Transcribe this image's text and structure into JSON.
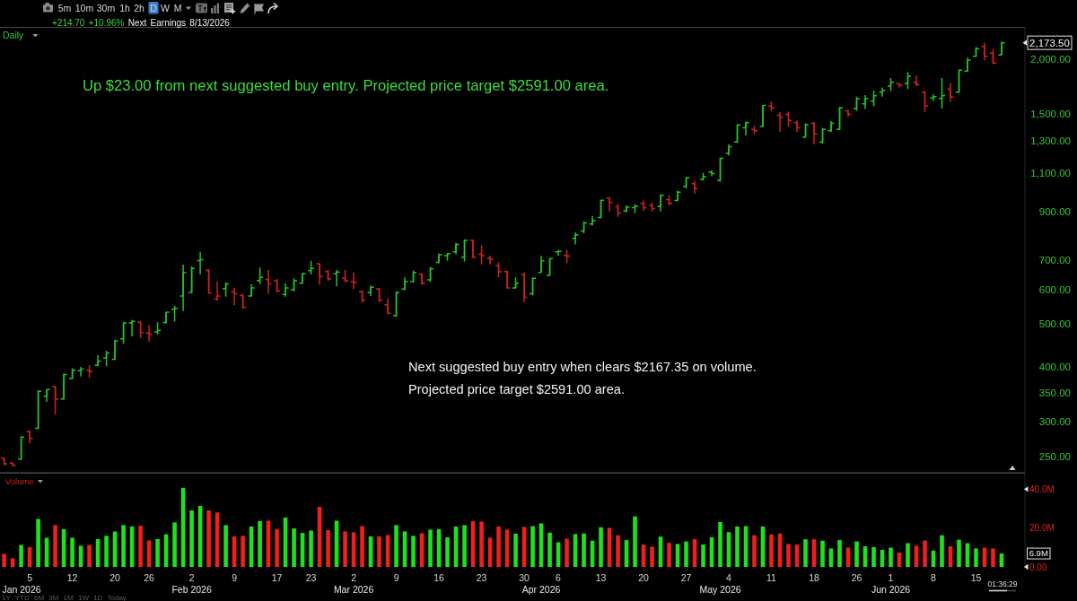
{
  "chart_data": [
    {
      "type": "candlestick",
      "title": "Daily",
      "subtitle": "+214.70 +10.96% Next Earnings 8/13/2026",
      "log": true,
      "tick_labels": "y",
      "categories": [
        null,
        null,
        null,
        null,
        null,
        null,
        null,
        null,
        null,
        null,
        null,
        null,
        null,
        null,
        null,
        null,
        null,
        null,
        null,
        null,
        null,
        null,
        null,
        null,
        null,
        null,
        null,
        null,
        null,
        null,
        null,
        null,
        null,
        null,
        null,
        null,
        null,
        null,
        null,
        null,
        null,
        null,
        null,
        null,
        null,
        null,
        null,
        null,
        null,
        null,
        null,
        null,
        null,
        null,
        null,
        null,
        null,
        null,
        null,
        null,
        null,
        null,
        null,
        null,
        null,
        null,
        null,
        null,
        null,
        null,
        null,
        null,
        null,
        null,
        null,
        null,
        null,
        null,
        null,
        null,
        null,
        null,
        null,
        null,
        null,
        null,
        null,
        null,
        null,
        null,
        null,
        null,
        null,
        null,
        null,
        null,
        null,
        null,
        null,
        null,
        null,
        null,
        null,
        null,
        null,
        null,
        null,
        null,
        null,
        null,
        null,
        null,
        null,
        null,
        null,
        null,
        null,
        null
      ],
      "ohlc": [
        [
          248,
          249,
          239,
          241
        ],
        [
          242,
          243,
          238,
          239
        ],
        [
          247,
          278,
          246,
          277
        ],
        [
          285,
          287,
          268,
          275
        ],
        [
          290,
          354,
          289,
          352
        ],
        [
          343,
          356,
          333,
          355
        ],
        [
          361,
          362,
          312,
          338
        ],
        [
          338,
          386,
          337,
          384
        ],
        [
          376,
          397,
          375,
          393
        ],
        [
          392,
          400,
          380,
          395
        ],
        [
          393,
          403,
          378,
          390
        ],
        [
          403,
          425,
          401,
          412
        ],
        [
          419,
          435,
          401,
          430
        ],
        [
          416,
          460,
          414,
          458
        ],
        [
          463,
          505,
          451,
          503
        ],
        [
          503,
          511,
          469,
          507
        ],
        [
          505,
          507,
          465,
          478
        ],
        [
          477,
          497,
          456,
          474
        ],
        [
          480,
          505,
          474,
          484
        ],
        [
          504,
          533,
          501,
          532
        ],
        [
          540,
          550,
          507,
          543
        ],
        [
          579,
          682,
          535,
          654
        ],
        [
          590,
          676,
          588,
          669
        ],
        [
          697,
          729,
          648,
          700
        ],
        [
          662,
          666,
          586,
          588
        ],
        [
          570,
          624,
          565,
          579
        ],
        [
          602,
          621,
          577,
          617
        ],
        [
          592,
          604,
          552,
          586
        ],
        [
          580,
          586,
          542,
          546
        ],
        [
          579,
          616,
          577,
          604
        ],
        [
          628,
          672,
          617,
          638
        ],
        [
          631,
          664,
          586,
          617
        ],
        [
          627,
          633,
          590,
          595
        ],
        [
          584,
          619,
          577,
          604
        ],
        [
          598,
          635,
          593,
          627
        ],
        [
          619,
          654,
          617,
          651
        ],
        [
          661,
          696,
          648,
          669
        ],
        [
          685,
          687,
          614,
          641
        ],
        [
          658,
          664,
          627,
          633
        ],
        [
          650,
          664,
          609,
          656
        ],
        [
          636,
          664,
          622,
          627
        ],
        [
          624,
          654,
          600,
          622
        ],
        [
          592,
          597,
          559,
          566
        ],
        [
          590,
          612,
          579,
          606
        ],
        [
          600,
          604,
          561,
          566
        ],
        [
          553,
          572,
          527,
          529
        ],
        [
          523,
          593,
          519,
          590
        ],
        [
          600,
          638,
          597,
          625
        ],
        [
          625,
          662,
          621,
          655
        ],
        [
          648,
          654,
          614,
          619
        ],
        [
          630,
          674,
          624,
          667
        ],
        [
          690,
          723,
          687,
          718
        ],
        [
          715,
          725,
          696,
          722
        ],
        [
          729,
          764,
          720,
          758
        ],
        [
          709,
          778,
          693,
          774
        ],
        [
          774,
          778,
          706,
          709
        ],
        [
          720,
          754,
          683,
          715
        ],
        [
          706,
          715,
          683,
          701
        ],
        [
          679,
          690,
          638,
          657
        ],
        [
          658,
          662,
          602,
          604
        ],
        [
          604,
          638,
          602,
          619
        ],
        [
          648,
          655,
          561,
          575
        ],
        [
          586,
          638,
          581,
          635
        ],
        [
          655,
          714,
          654,
          696
        ],
        [
          645,
          706,
          643,
          704
        ],
        [
          729,
          737,
          715,
          731
        ],
        [
          716,
          738,
          687,
          713
        ],
        [
          782,
          807,
          758,
          797
        ],
        [
          813,
          855,
          804,
          848
        ],
        [
          843,
          879,
          836,
          859
        ],
        [
          872,
          958,
          868,
          955
        ],
        [
          965,
          970,
          900,
          943
        ],
        [
          924,
          936,
          875,
          893
        ],
        [
          903,
          929,
          896,
          921
        ],
        [
          918,
          936,
          893,
          926
        ],
        [
          939,
          953,
          904,
          917
        ],
        [
          929,
          943,
          900,
          914
        ],
        [
          924,
          984,
          900,
          980
        ],
        [
          958,
          980,
          929,
          939
        ],
        [
          953,
          1004,
          951,
          996
        ],
        [
          1025,
          1077,
          1015,
          1074
        ],
        [
          1041,
          1057,
          988,
          1015
        ],
        [
          1064,
          1102,
          1060,
          1080
        ],
        [
          1107,
          1115,
          1082,
          1097
        ],
        [
          1060,
          1192,
          1052,
          1188
        ],
        [
          1220,
          1279,
          1205,
          1263
        ],
        [
          1295,
          1419,
          1289,
          1415
        ],
        [
          1393,
          1442,
          1340,
          1431
        ],
        [
          1383,
          1409,
          1351,
          1372
        ],
        [
          1404,
          1571,
          1398,
          1566
        ],
        [
          1562,
          1596,
          1519,
          1547
        ],
        [
          1488,
          1514,
          1365,
          1472
        ],
        [
          1495,
          1519,
          1404,
          1449
        ],
        [
          1431,
          1449,
          1365,
          1393
        ],
        [
          1327,
          1426,
          1323,
          1415
        ],
        [
          1426,
          1438,
          1279,
          1351
        ],
        [
          1293,
          1393,
          1283,
          1383
        ],
        [
          1372,
          1444,
          1365,
          1426
        ],
        [
          1383,
          1555,
          1378,
          1547
        ],
        [
          1523,
          1530,
          1476,
          1495
        ],
        [
          1542,
          1641,
          1523,
          1621
        ],
        [
          1580,
          1654,
          1537,
          1625
        ],
        [
          1603,
          1694,
          1559,
          1647
        ],
        [
          1680,
          1720,
          1641,
          1694
        ],
        [
          1734,
          1808,
          1688,
          1767
        ],
        [
          1755,
          1761,
          1720,
          1742
        ],
        [
          1755,
          1866,
          1707,
          1825
        ],
        [
          1767,
          1832,
          1734,
          1748
        ],
        [
          1680,
          1688,
          1514,
          1562
        ],
        [
          1629,
          1662,
          1603,
          1641
        ],
        [
          1625,
          1808,
          1542,
          1650
        ],
        [
          1707,
          1761,
          1596,
          1637
        ],
        [
          1680,
          1889,
          1672,
          1884
        ],
        [
          1875,
          2011,
          1866,
          1986
        ],
        [
          2026,
          2124,
          2017,
          2108
        ],
        [
          2133,
          2174,
          1986,
          2026
        ],
        [
          2059,
          2101,
          1943,
          1956
        ],
        [
          2040,
          2185,
          2036,
          2173.5
        ]
      ],
      "colors": [
        "#cc2222",
        "#cc2222",
        "#2bbf2b",
        "#cc2222",
        "#2bbf2b",
        "#2bbf2b",
        "#cc2222",
        "#2bbf2b",
        "#2bbf2b",
        "#2bbf2b",
        "#cc2222",
        "#2bbf2b",
        "#2bbf2b",
        "#2bbf2b",
        "#2bbf2b",
        "#2bbf2b",
        "#cc2222",
        "#cc2222",
        "#2bbf2b",
        "#2bbf2b",
        "#2bbf2b",
        "#2bbf2b",
        "#2bbf2b",
        "#2bbf2b",
        "#cc2222",
        "#cc2222",
        "#2bbf2b",
        "#cc2222",
        "#cc2222",
        "#2bbf2b",
        "#2bbf2b",
        "#cc2222",
        "#cc2222",
        "#2bbf2b",
        "#2bbf2b",
        "#2bbf2b",
        "#2bbf2b",
        "#cc2222",
        "#cc2222",
        "#2bbf2b",
        "#cc2222",
        "#cc2222",
        "#cc2222",
        "#2bbf2b",
        "#cc2222",
        "#cc2222",
        "#2bbf2b",
        "#2bbf2b",
        "#2bbf2b",
        "#cc2222",
        "#2bbf2b",
        "#2bbf2b",
        "#2bbf2b",
        "#2bbf2b",
        "#2bbf2b",
        "#cc2222",
        "#cc2222",
        "#cc2222",
        "#cc2222",
        "#cc2222",
        "#2bbf2b",
        "#cc2222",
        "#2bbf2b",
        "#2bbf2b",
        "#2bbf2b",
        "#2bbf2b",
        "#cc2222",
        "#2bbf2b",
        "#2bbf2b",
        "#2bbf2b",
        "#2bbf2b",
        "#cc2222",
        "#cc2222",
        "#2bbf2b",
        "#2bbf2b",
        "#cc2222",
        "#cc2222",
        "#2bbf2b",
        "#cc2222",
        "#2bbf2b",
        "#2bbf2b",
        "#cc2222",
        "#2bbf2b",
        "#2bbf2b",
        "#2bbf2b",
        "#2bbf2b",
        "#2bbf2b",
        "#2bbf2b",
        "#cc2222",
        "#2bbf2b",
        "#cc2222",
        "#cc2222",
        "#cc2222",
        "#cc2222",
        "#2bbf2b",
        "#cc2222",
        "#2bbf2b",
        "#2bbf2b",
        "#2bbf2b",
        "#cc2222",
        "#2bbf2b",
        "#2bbf2b",
        "#2bbf2b",
        "#2bbf2b",
        "#2bbf2b",
        "#cc2222",
        "#2bbf2b",
        "#cc2222",
        "#cc2222",
        "#2bbf2b",
        "#2bbf2b",
        "#cc2222",
        "#2bbf2b",
        "#2bbf2b",
        "#2bbf2b",
        "#cc2222",
        "#cc2222",
        "#2bbf2b"
      ],
      "ylim": [
        230,
        2350
      ],
      "yticks": [
        {
          "value": 250,
          "label": "250.00"
        },
        {
          "value": 300,
          "label": "300.00"
        },
        {
          "value": 350,
          "label": "350.00"
        },
        {
          "value": 400,
          "label": "400.00"
        },
        {
          "value": 500,
          "label": "500.00"
        },
        {
          "value": 600,
          "label": "600.00"
        },
        {
          "value": 700,
          "label": "700.00"
        },
        {
          "value": 900,
          "label": "900.00"
        },
        {
          "value": 1100,
          "label": "1,100.00"
        },
        {
          "value": 1300,
          "label": "1,300.00"
        },
        {
          "value": 1500,
          "label": "1,500.00"
        },
        {
          "value": 2000,
          "label": "2,000.00"
        }
      ],
      "annotations": [
        "Up $23.00 from next suggested buy entry. Projected price target $2591.00 area.",
        "Next suggested buy entry when clears $2167.35 on volume.\nProjected price target $2591.00 area.",
        "5m 10m 30m 1h 2h D W M",
        "1Y YTD 6M 3M 1M 1W 1D Today",
        "01:36:29",
        "2,173.50"
      ]
    },
    {
      "type": "bar",
      "title": "Volume",
      "categories": [
        null,
        null,
        "\nJan 2026",
        "5",
        null,
        null,
        null,
        null,
        "12",
        null,
        null,
        null,
        null,
        "20",
        null,
        null,
        null,
        "26",
        null,
        null,
        null,
        null,
        "2\nFeb 2026",
        null,
        null,
        null,
        null,
        "9",
        null,
        null,
        null,
        null,
        "17",
        null,
        null,
        null,
        "23",
        null,
        null,
        null,
        null,
        "2\nMar 2026",
        null,
        null,
        null,
        null,
        "9",
        null,
        null,
        null,
        null,
        "16",
        null,
        null,
        null,
        null,
        "23",
        null,
        null,
        null,
        null,
        "30",
        null,
        "\nApr 2026",
        null,
        "6",
        null,
        null,
        null,
        null,
        "13",
        null,
        null,
        null,
        null,
        "20",
        null,
        null,
        null,
        null,
        "27",
        null,
        null,
        null,
        "\nMay 2026",
        "4",
        null,
        null,
        null,
        null,
        "11",
        null,
        null,
        null,
        null,
        "18",
        null,
        null,
        null,
        null,
        "26",
        null,
        null,
        null,
        "1\nJun 2026",
        null,
        null,
        null,
        null,
        "8",
        null,
        null,
        null,
        null,
        "15",
        null,
        null,
        null
      ],
      "values": [
        6.7,
        4.4,
        11.3,
        10.2,
        24.7,
        15.0,
        21.5,
        19.4,
        15.0,
        10.9,
        11.3,
        14.3,
        16.0,
        18.2,
        21.5,
        20.8,
        21.2,
        13.6,
        14.3,
        16.8,
        22.9,
        40.7,
        29.1,
        31.4,
        29.1,
        28.0,
        21.5,
        15.7,
        16.0,
        20.8,
        23.6,
        23.8,
        19.4,
        25.4,
        19.8,
        17.5,
        18.7,
        30.9,
        18.9,
        23.8,
        18.3,
        17.8,
        21.0,
        15.7,
        15.7,
        16.4,
        21.5,
        18.3,
        16.0,
        17.3,
        19.2,
        19.4,
        15.2,
        20.8,
        21.5,
        23.5,
        23.3,
        15.0,
        20.8,
        19.2,
        17.1,
        20.6,
        21.0,
        22.4,
        17.6,
        12.7,
        14.5,
        16.9,
        17.2,
        13.5,
        20.4,
        20.1,
        16.3,
        13.8,
        26.0,
        11.5,
        10.4,
        15.6,
        12.4,
        11.8,
        13.1,
        14.3,
        11.5,
        15.2,
        23.1,
        17.9,
        20.8,
        21.0,
        16.3,
        20.8,
        16.7,
        17.2,
        11.8,
        11.5,
        14.2,
        14.2,
        13.5,
        9.5,
        13.8,
        9.9,
        13.1,
        10.6,
        10.2,
        8.8,
        9.9,
        7.4,
        12.2,
        10.9,
        13.6,
        8.4,
        16.3,
        10.6,
        14.0,
        12.2,
        9.5,
        9.9,
        9.5,
        6.9
      ],
      "colors": [
        "#f01e1e",
        "#f01e1e",
        "#1ee01e",
        "#f01e1e",
        "#1ee01e",
        "#1ee01e",
        "#f01e1e",
        "#1ee01e",
        "#1ee01e",
        "#1ee01e",
        "#f01e1e",
        "#1ee01e",
        "#1ee01e",
        "#1ee01e",
        "#1ee01e",
        "#1ee01e",
        "#f01e1e",
        "#f01e1e",
        "#1ee01e",
        "#1ee01e",
        "#1ee01e",
        "#1ee01e",
        "#1ee01e",
        "#1ee01e",
        "#f01e1e",
        "#f01e1e",
        "#1ee01e",
        "#f01e1e",
        "#f01e1e",
        "#1ee01e",
        "#1ee01e",
        "#f01e1e",
        "#f01e1e",
        "#1ee01e",
        "#1ee01e",
        "#1ee01e",
        "#1ee01e",
        "#f01e1e",
        "#f01e1e",
        "#1ee01e",
        "#f01e1e",
        "#f01e1e",
        "#f01e1e",
        "#1ee01e",
        "#f01e1e",
        "#f01e1e",
        "#1ee01e",
        "#1ee01e",
        "#1ee01e",
        "#f01e1e",
        "#1ee01e",
        "#1ee01e",
        "#1ee01e",
        "#1ee01e",
        "#1ee01e",
        "#f01e1e",
        "#f01e1e",
        "#f01e1e",
        "#f01e1e",
        "#f01e1e",
        "#1ee01e",
        "#f01e1e",
        "#1ee01e",
        "#1ee01e",
        "#1ee01e",
        "#1ee01e",
        "#f01e1e",
        "#1ee01e",
        "#1ee01e",
        "#1ee01e",
        "#1ee01e",
        "#f01e1e",
        "#f01e1e",
        "#1ee01e",
        "#1ee01e",
        "#f01e1e",
        "#f01e1e",
        "#1ee01e",
        "#f01e1e",
        "#1ee01e",
        "#1ee01e",
        "#f01e1e",
        "#1ee01e",
        "#1ee01e",
        "#1ee01e",
        "#1ee01e",
        "#1ee01e",
        "#1ee01e",
        "#f01e1e",
        "#1ee01e",
        "#f01e1e",
        "#f01e1e",
        "#f01e1e",
        "#f01e1e",
        "#1ee01e",
        "#f01e1e",
        "#1ee01e",
        "#1ee01e",
        "#1ee01e",
        "#f01e1e",
        "#1ee01e",
        "#1ee01e",
        "#1ee01e",
        "#1ee01e",
        "#1ee01e",
        "#f01e1e",
        "#1ee01e",
        "#f01e1e",
        "#f01e1e",
        "#1ee01e",
        "#1ee01e",
        "#f01e1e",
        "#1ee01e",
        "#1ee01e",
        "#1ee01e",
        "#f01e1e",
        "#f01e1e",
        "#1ee01e"
      ],
      "ylim": [
        0,
        48
      ],
      "yticks": [
        {
          "value": 0,
          "label": "0.00"
        },
        {
          "value": 20,
          "label": "20.0M"
        },
        {
          "value": 40,
          "label": "40.0M"
        }
      ],
      "annotations": [
        "6.9M"
      ]
    }
  ]
}
